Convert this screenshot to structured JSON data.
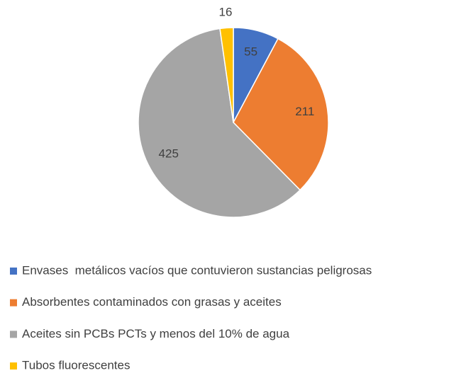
{
  "chart_data": {
    "type": "pie",
    "categories": [
      "Envases  metálicos vacíos que contuvieron sustancias peligrosas",
      "Absorbentes contaminados con grasas y aceites",
      "Aceites sin PCBs PCTs y menos del 10% de agua",
      "Tubos fluorescentes"
    ],
    "values": [
      55,
      211,
      425,
      16
    ],
    "colors": [
      "#4472c4",
      "#ed7d31",
      "#a5a5a5",
      "#ffc000"
    ],
    "legend": "bottom"
  }
}
